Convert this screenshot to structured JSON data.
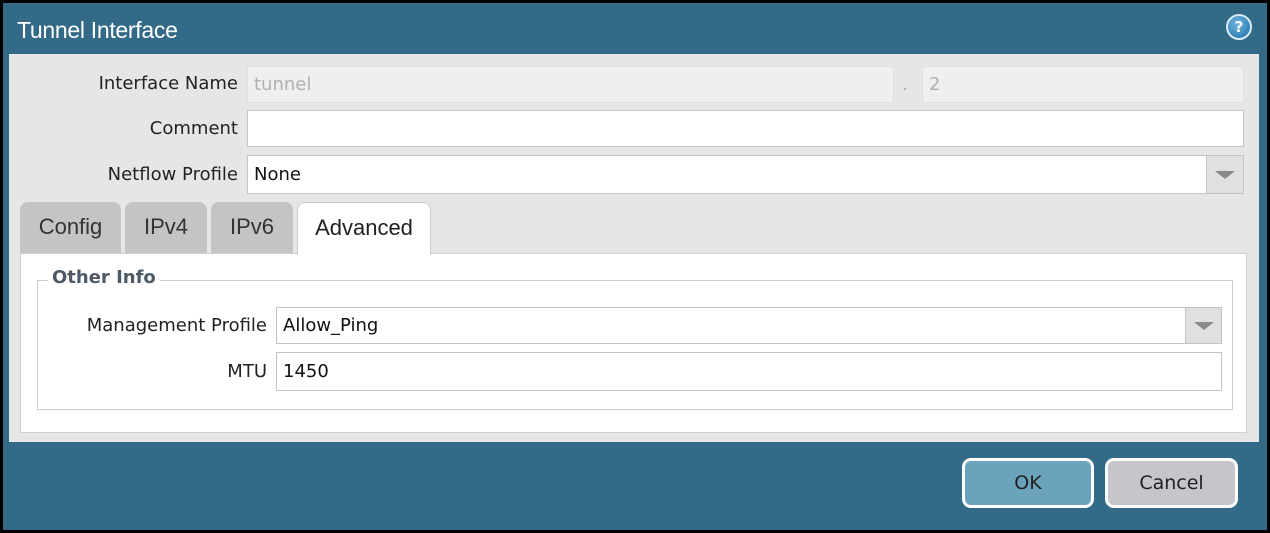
{
  "dialog": {
    "title": "Tunnel Interface",
    "help_icon": "help-icon"
  },
  "fields": {
    "interface_name_label": "Interface Name",
    "interface_name_value": "tunnel",
    "separator": ".",
    "interface_number": "2",
    "comment_label": "Comment",
    "comment_value": "",
    "netflow_label": "Netflow Profile",
    "netflow_value": "None"
  },
  "tabs": [
    {
      "label": "Config"
    },
    {
      "label": "IPv4"
    },
    {
      "label": "IPv6"
    },
    {
      "label": "Advanced",
      "active": true
    }
  ],
  "advanced": {
    "section_title": "Other Info",
    "mgmt_label": "Management Profile",
    "mgmt_value": "Allow_Ping",
    "mtu_label": "MTU",
    "mtu_value": "1450"
  },
  "buttons": {
    "ok": "OK",
    "cancel": "Cancel"
  },
  "colors": {
    "titlebar": "#336a87",
    "ok_button": "#6aa3bb",
    "cancel_button": "#c4c6cc"
  }
}
